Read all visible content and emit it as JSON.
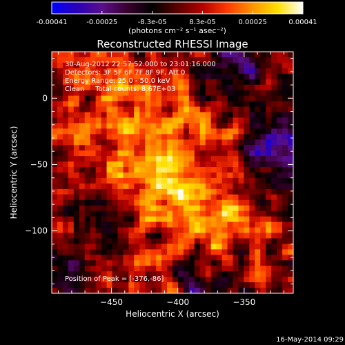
{
  "chart_data": {
    "type": "heatmap",
    "title": "Reconstructed RHESSI Image",
    "xlabel": "Heliocentric X (arcsec)",
    "ylabel": "Heliocentric Y (arcsec)",
    "xlim": [
      -495,
      -313
    ],
    "ylim": [
      -147,
      35
    ],
    "x_ticks": [
      -450,
      -400,
      -350
    ],
    "y_ticks": [
      0,
      -50,
      -100
    ],
    "colorbar": {
      "ticks": [
        "-0.00041",
        "-0.00025",
        "-8.3e-05",
        "8.3e-05",
        "0.00025",
        "0.00041"
      ],
      "range": [
        -0.00041,
        0.00041
      ],
      "colors": [
        "#0000ff",
        "#2a00b8",
        "#5a0f8a",
        "#3a0030",
        "#000000",
        "#5a0000",
        "#b30000",
        "#ff3b00",
        "#ff9400",
        "#ffe000",
        "#ffffff"
      ]
    },
    "units_text": "(photons cm⁻² s⁻¹ asec⁻²)",
    "annotations": [
      "30-Aug-2012 22:57:52.000 to 23:01:16.000",
      "Detectors: 3F 5F 6F 7F 8F 9F, Att 0",
      "Energy Range: 25.0 - 50.0 keV",
      "Clean     Total counts: 8.67E+03"
    ],
    "peak_label": "Position of Peak = [-376,-86]",
    "peak_position": [
      -376,
      -86
    ],
    "map_grid": {
      "nx": 44,
      "ny": 44,
      "pixel_arcsec": 4
    }
  },
  "footer": {
    "timestamp": "16-May-2014 09:29"
  }
}
